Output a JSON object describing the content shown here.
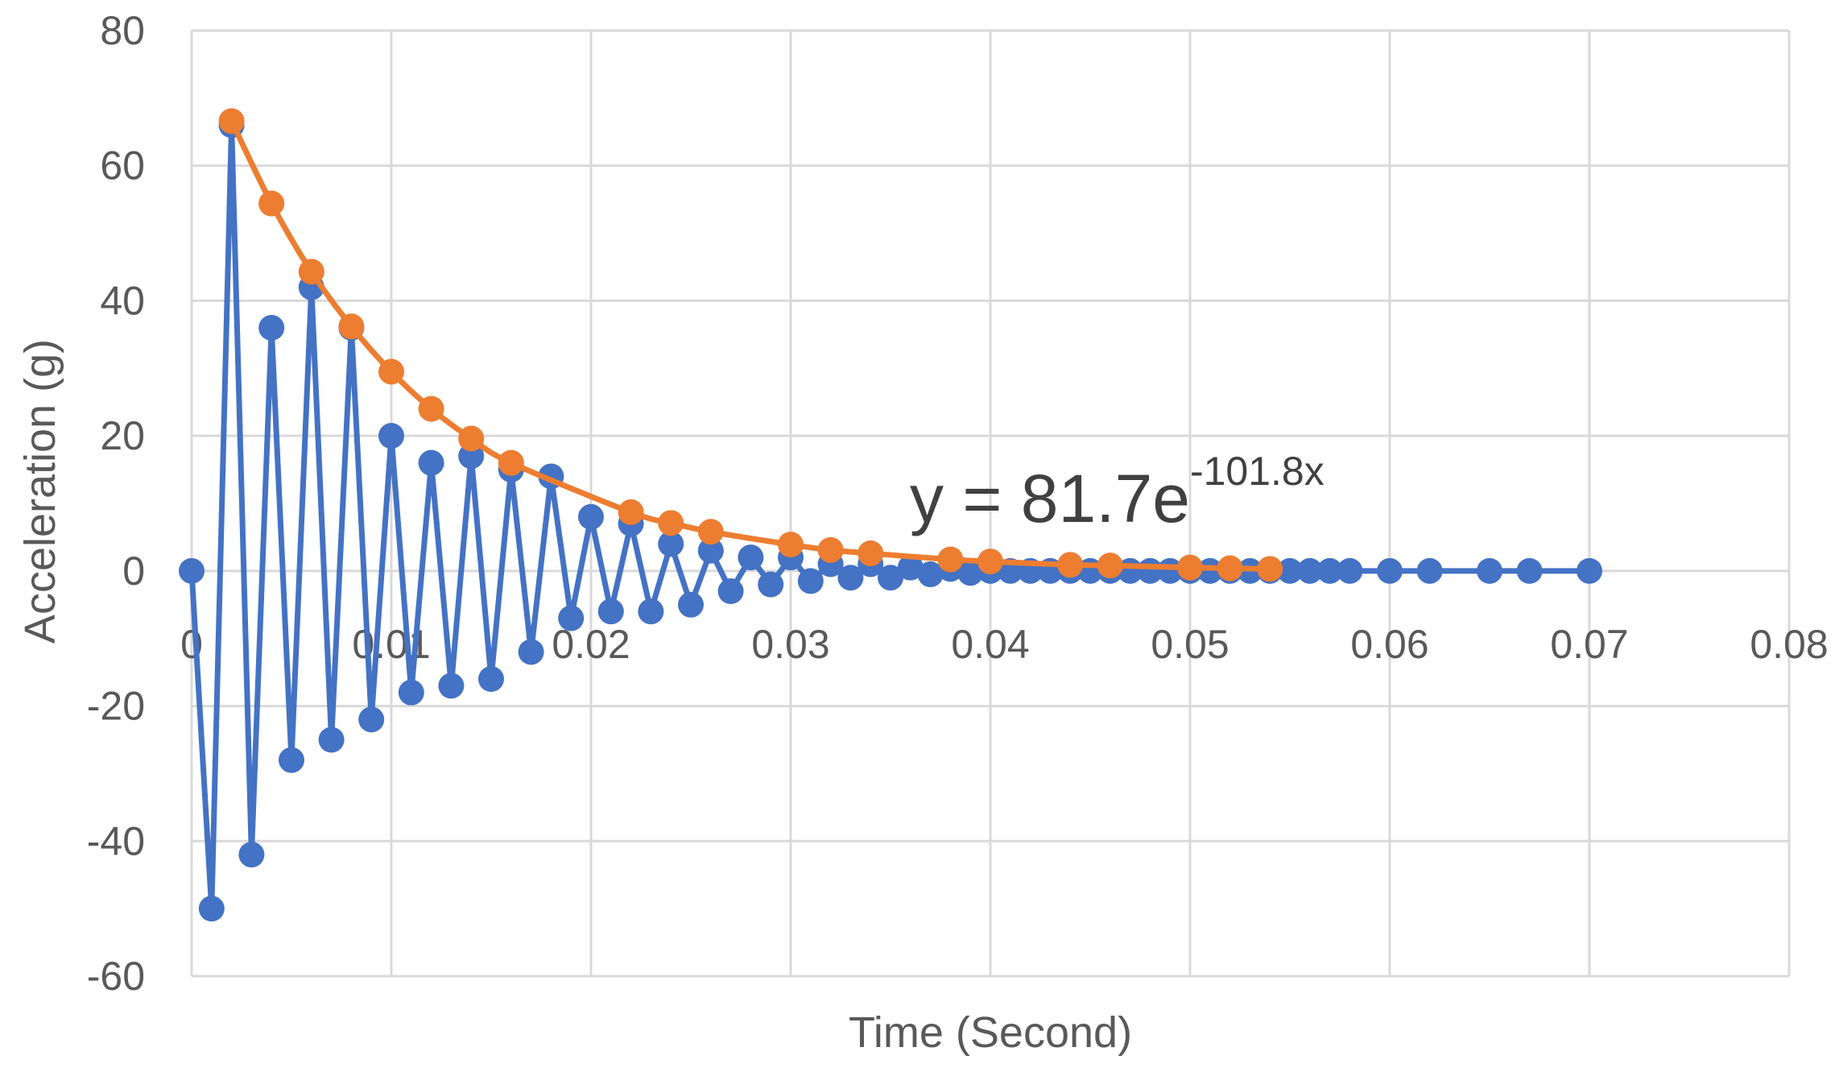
{
  "chart_data": {
    "type": "scatter",
    "title": "",
    "xlabel": "Time (Second)",
    "ylabel": "Acceleration (g)",
    "xlim": [
      0,
      0.08
    ],
    "ylim": [
      -60,
      80
    ],
    "x_ticks": [
      0,
      0.01,
      0.02,
      0.03,
      0.04,
      0.05,
      0.06,
      0.07,
      0.08
    ],
    "x_tick_labels": [
      "0",
      "0.01",
      "0.02",
      "0.03",
      "0.04",
      "0.05",
      "0.06",
      "0.07",
      "0.08"
    ],
    "y_ticks": [
      -60,
      -40,
      -20,
      0,
      20,
      40,
      60,
      80
    ],
    "y_tick_labels": [
      "-60",
      "-40",
      "-20",
      "0",
      "20",
      "40",
      "60",
      "80"
    ],
    "grid": true,
    "legend": "none",
    "trendline_equation": {
      "base": "y = 81.7e",
      "exponent": "-101.8x"
    },
    "series": [
      {
        "color": "#4472c4",
        "marker": "circle",
        "line": "straight",
        "points": [
          [
            0,
            0
          ],
          [
            0.001,
            -50
          ],
          [
            0.002,
            66
          ],
          [
            0.003,
            -42
          ],
          [
            0.004,
            36
          ],
          [
            0.005,
            -28
          ],
          [
            0.006,
            42
          ],
          [
            0.007,
            -25
          ],
          [
            0.008,
            36
          ],
          [
            0.009,
            -22
          ],
          [
            0.01,
            20
          ],
          [
            0.011,
            -18
          ],
          [
            0.012,
            16
          ],
          [
            0.013,
            -17
          ],
          [
            0.014,
            17
          ],
          [
            0.015,
            -16
          ],
          [
            0.016,
            15
          ],
          [
            0.017,
            -12
          ],
          [
            0.018,
            14
          ],
          [
            0.019,
            -7
          ],
          [
            0.02,
            8
          ],
          [
            0.021,
            -6
          ],
          [
            0.022,
            7
          ],
          [
            0.023,
            -6
          ],
          [
            0.024,
            4
          ],
          [
            0.025,
            -5
          ],
          [
            0.026,
            3
          ],
          [
            0.027,
            -3
          ],
          [
            0.028,
            2
          ],
          [
            0.029,
            -2
          ],
          [
            0.03,
            2
          ],
          [
            0.031,
            -1.5
          ],
          [
            0.032,
            1
          ],
          [
            0.033,
            -1
          ],
          [
            0.034,
            1
          ],
          [
            0.035,
            -1
          ],
          [
            0.036,
            0.5
          ],
          [
            0.037,
            -0.5
          ],
          [
            0.038,
            0.3
          ],
          [
            0.039,
            -0.3
          ],
          [
            0.04,
            0
          ],
          [
            0.041,
            0
          ],
          [
            0.042,
            0
          ],
          [
            0.043,
            0
          ],
          [
            0.044,
            0
          ],
          [
            0.045,
            0
          ],
          [
            0.046,
            0
          ],
          [
            0.047,
            0
          ],
          [
            0.048,
            0
          ],
          [
            0.049,
            0
          ],
          [
            0.05,
            0
          ],
          [
            0.051,
            0
          ],
          [
            0.052,
            0
          ],
          [
            0.053,
            0
          ],
          [
            0.054,
            0
          ],
          [
            0.055,
            0
          ],
          [
            0.056,
            0
          ],
          [
            0.057,
            0
          ],
          [
            0.058,
            0
          ],
          [
            0.06,
            0
          ],
          [
            0.062,
            0
          ],
          [
            0.065,
            0
          ],
          [
            0.067,
            0
          ],
          [
            0.07,
            0
          ]
        ]
      },
      {
        "color": "#ed7d31",
        "marker": "circle",
        "line": "smooth",
        "points": [
          [
            0.002,
            66.6
          ],
          [
            0.004,
            54.4
          ],
          [
            0.006,
            44.3
          ],
          [
            0.008,
            36.2
          ],
          [
            0.01,
            29.5
          ],
          [
            0.012,
            24.0
          ],
          [
            0.014,
            19.6
          ],
          [
            0.016,
            16.0
          ],
          [
            0.022,
            8.7
          ],
          [
            0.024,
            7.1
          ],
          [
            0.026,
            5.8
          ],
          [
            0.03,
            3.9
          ],
          [
            0.032,
            3.1
          ],
          [
            0.034,
            2.6
          ],
          [
            0.038,
            1.7
          ],
          [
            0.04,
            1.4
          ],
          [
            0.044,
            0.9
          ],
          [
            0.046,
            0.8
          ],
          [
            0.05,
            0.5
          ],
          [
            0.052,
            0.4
          ],
          [
            0.054,
            0.3
          ]
        ]
      }
    ]
  }
}
